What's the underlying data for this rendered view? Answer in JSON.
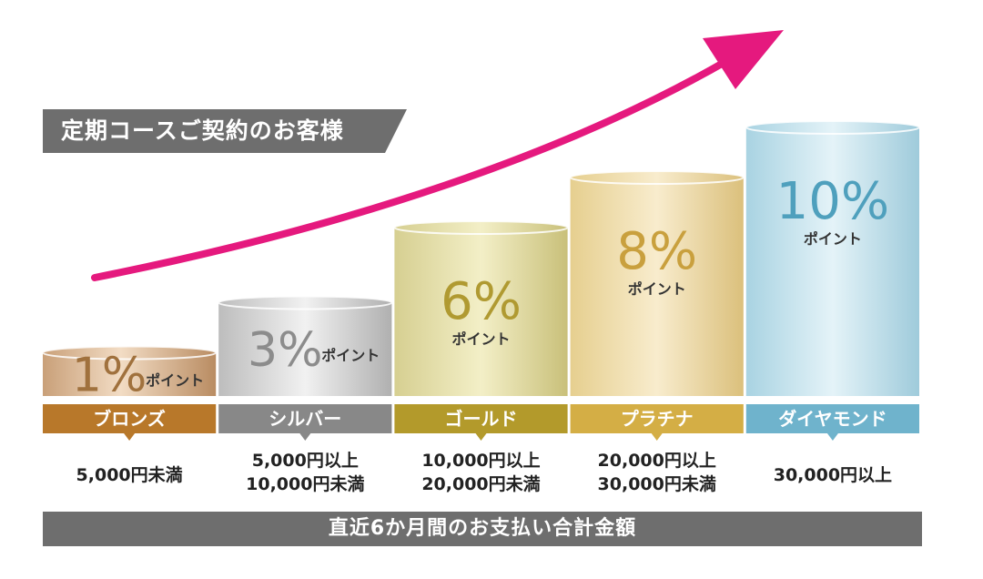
{
  "heading": "定期コースご契約のお客様",
  "footer": "直近6か月間のお支払い合計金額",
  "chart_data": {
    "type": "bar",
    "categories": [
      "ブロンズ",
      "シルバー",
      "ゴールド",
      "プラチナ",
      "ダイヤモンド"
    ],
    "series": [
      {
        "values": [
          1,
          3,
          6,
          8,
          10
        ]
      }
    ],
    "value_labels": [
      "1%",
      "3%",
      "6%",
      "8%",
      "10%"
    ],
    "unit_label": "ポイント",
    "ranges": [
      [
        "5,000円未満"
      ],
      [
        "5,000円以上",
        "10,000円未満"
      ],
      [
        "10,000円以上",
        "20,000円未満"
      ],
      [
        "20,000円以上",
        "30,000円未満"
      ],
      [
        "30,000円以上"
      ]
    ],
    "colors": {
      "bronze": "#b8782a",
      "silver": "#888888",
      "gold": "#b39a2b",
      "platinum": "#d4ae45",
      "diamond": "#6fb3cc",
      "arrow": "#e5197e"
    }
  }
}
